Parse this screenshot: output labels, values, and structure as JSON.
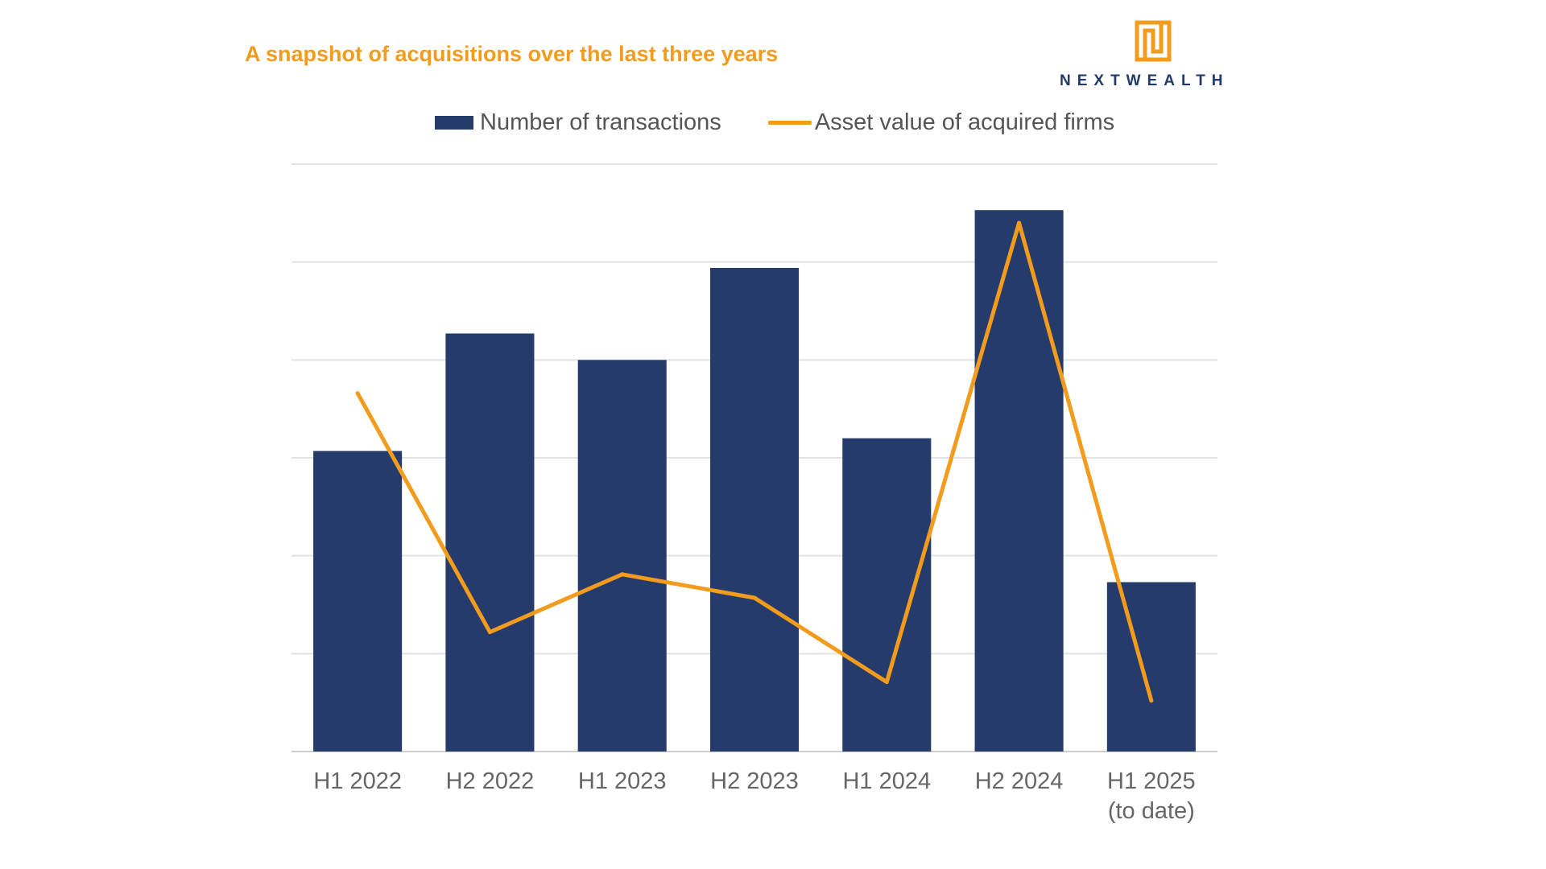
{
  "header": {
    "title": "A snapshot of acquisitions over the last three years"
  },
  "brand": {
    "name": "NEXTWEALTH",
    "logo_icon": "nextwealth-logo-icon",
    "color": "#233a6a",
    "accent": "#f29b1d"
  },
  "chart_data": {
    "type": "bar",
    "categories": [
      "H1 2022",
      "H2 2022",
      "H1 2023",
      "H2 2023",
      "H1 2024",
      "H2 2024",
      "H1 2025 (to date)"
    ],
    "category_lines": [
      [
        "H1 2022"
      ],
      [
        "H2 2022"
      ],
      [
        "H1 2023"
      ],
      [
        "H2 2023"
      ],
      [
        "H1 2024"
      ],
      [
        "H2 2024"
      ],
      [
        "H1 2025",
        "(to date)"
      ]
    ],
    "series": [
      {
        "name": "Number of transactions",
        "type": "bar",
        "color": "#253b6b",
        "values": [
          30.7,
          42.7,
          40.0,
          49.4,
          32.0,
          55.3,
          17.3
        ]
      },
      {
        "name": "Asset value of acquired firms",
        "type": "line",
        "color": "#f29b1d",
        "values": [
          36.6,
          12.2,
          18.1,
          15.7,
          7.1,
          54.0,
          5.2
        ]
      }
    ],
    "ylim": [
      0,
      60
    ],
    "grid": true,
    "y_tick_labels_shown": false,
    "legend_position": "top"
  }
}
